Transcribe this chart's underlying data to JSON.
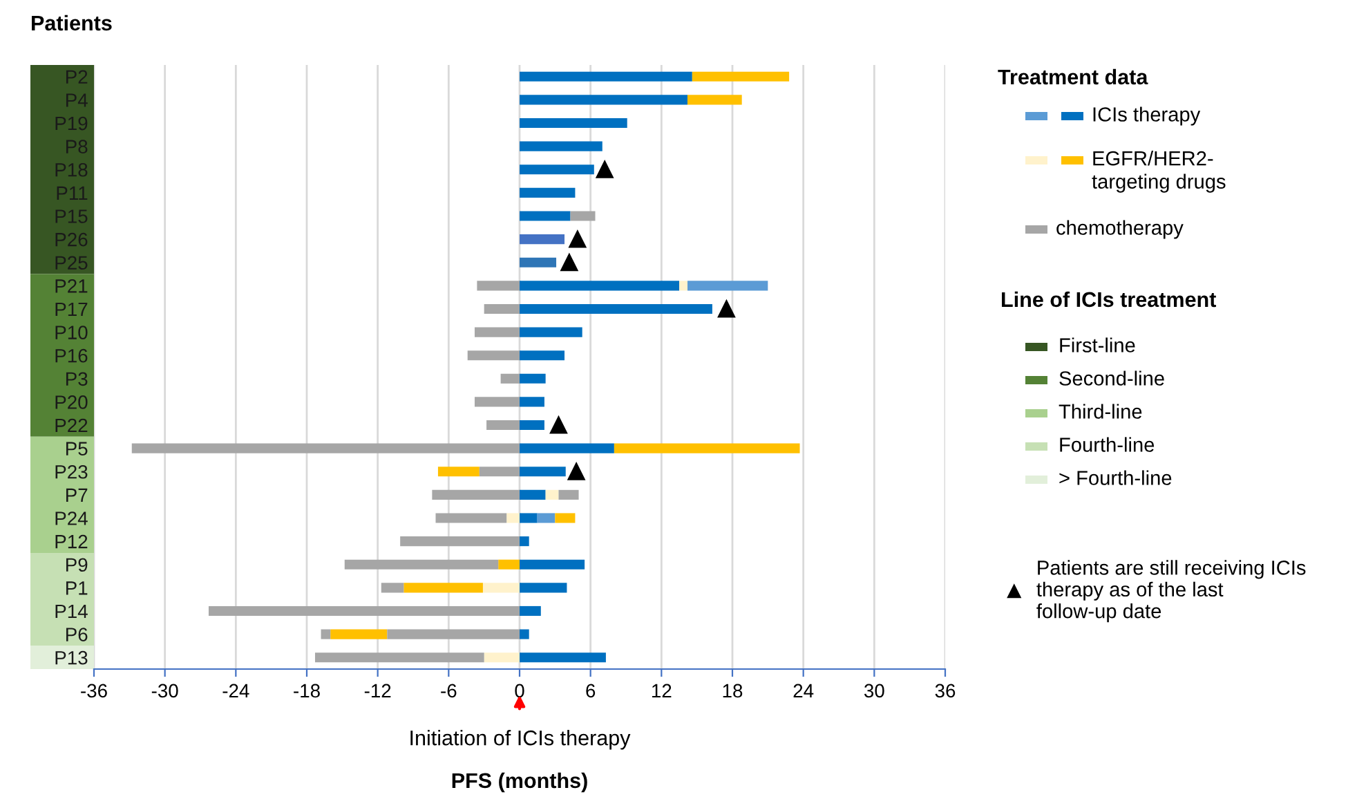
{
  "chart_data": {
    "type": "bar",
    "orientation": "horizontal",
    "ylabel": "Patients",
    "xlabel": "PFS (months)",
    "legend_title": "Treatment data",
    "legend": "right",
    "categories": [
      "P2",
      "P4",
      "P19",
      "P8",
      "P18",
      "P11",
      "P15",
      "P26",
      "P25",
      "P21",
      "P17",
      "P10",
      "P16",
      "P3",
      "P20",
      "P22",
      "P5",
      "P23",
      "P7",
      "P24",
      "P12",
      "P9",
      "P1",
      "P14",
      "P6",
      "P13"
    ],
    "series": [
      {
        "name": "ICIs therapy",
        "color": "#0070c0",
        "colors": [
          "#0070c0",
          "#0070c0",
          "#0070c0",
          "#0070c0",
          "#0070c0",
          "#0070c0",
          "#0070c0",
          "#4472c4",
          "#2e75b6",
          "#0070c0",
          "#0070c0",
          "#0070c0",
          "#0070c0",
          "#0070c0",
          "#0070c0",
          "#0070c0",
          "#0070c0",
          "#0070c0",
          "#0070c0",
          "#0070c0",
          "#0070c0",
          "#0070c0",
          "#0070c0",
          "#0070c0",
          "#0070c0",
          "#0070c0"
        ],
        "base": [
          0,
          0,
          0,
          0,
          0,
          0,
          0,
          0,
          0,
          0,
          0,
          0,
          0,
          0,
          0,
          0,
          0,
          0,
          0,
          0,
          0,
          0,
          0,
          0,
          0,
          0
        ],
        "values": [
          14.6,
          14.2,
          9.1,
          7.0,
          6.3,
          4.7,
          4.3,
          3.8,
          3.1,
          13.5,
          16.3,
          5.3,
          3.8,
          2.2,
          2.1,
          2.1,
          8.0,
          3.9,
          2.2,
          1.5,
          0.8,
          5.5,
          4.0,
          1.8,
          0.8,
          7.3
        ]
      },
      {
        "color": "#5b9bd5",
        "base": [
          null,
          null,
          null,
          null,
          null,
          null,
          null,
          null,
          null,
          14.2,
          null,
          null,
          null,
          null,
          null,
          null,
          null,
          null,
          null,
          1.5,
          null,
          null,
          null,
          null,
          null,
          null
        ],
        "values": [
          null,
          null,
          null,
          null,
          null,
          null,
          null,
          null,
          null,
          6.8,
          null,
          null,
          null,
          null,
          null,
          null,
          null,
          null,
          null,
          1.5,
          null,
          null,
          null,
          null,
          null,
          null
        ]
      },
      {
        "name": "EGFR/HER2-\ntargeting drugs",
        "color": "#ffc000",
        "base": [
          14.6,
          14.2,
          null,
          null,
          null,
          null,
          null,
          null,
          null,
          null,
          null,
          null,
          null,
          null,
          null,
          null,
          8.0,
          -6.9,
          null,
          3.0,
          null,
          -1.8,
          -9.8,
          null,
          -16.0,
          null
        ],
        "values": [
          8.2,
          4.6,
          null,
          null,
          null,
          null,
          null,
          null,
          null,
          null,
          null,
          null,
          null,
          null,
          null,
          null,
          15.7,
          3.5,
          null,
          1.7,
          null,
          1.8,
          6.7,
          null,
          4.8,
          null
        ]
      },
      {
        "color": "#fff2cc",
        "base": [
          null,
          null,
          null,
          null,
          null,
          null,
          null,
          null,
          null,
          13.5,
          null,
          null,
          null,
          null,
          null,
          null,
          null,
          null,
          2.2,
          -1.1,
          null,
          null,
          -3.1,
          null,
          null,
          -3.0
        ],
        "values": [
          null,
          null,
          null,
          null,
          null,
          null,
          null,
          null,
          null,
          0.7,
          null,
          null,
          null,
          null,
          null,
          null,
          null,
          null,
          1.1,
          1.1,
          null,
          null,
          3.1,
          null,
          null,
          3.0
        ]
      },
      {
        "name": "chemotherapy",
        "color": "#a6a6a6",
        "base": [
          null,
          null,
          null,
          null,
          null,
          null,
          null,
          null,
          null,
          -3.6,
          -3.0,
          -3.8,
          -4.4,
          -1.6,
          -3.8,
          -2.8,
          -32.8,
          -3.4,
          -7.4,
          -7.1,
          -10.1,
          -14.8,
          -11.7,
          -26.3,
          -11.2,
          -17.3
        ],
        "values": [
          null,
          null,
          null,
          null,
          null,
          null,
          null,
          null,
          null,
          3.6,
          3.0,
          3.8,
          4.4,
          1.6,
          3.8,
          2.8,
          32.8,
          3.4,
          7.4,
          6.0,
          10.1,
          13.0,
          1.9,
          26.3,
          11.2,
          14.3
        ]
      },
      {
        "color": "#a6a6a6",
        "base": [
          null,
          null,
          null,
          null,
          null,
          null,
          4.3,
          null,
          null,
          null,
          null,
          null,
          null,
          null,
          null,
          null,
          null,
          null,
          3.3,
          null,
          null,
          null,
          null,
          null,
          -16.8,
          null
        ],
        "values": [
          null,
          null,
          null,
          null,
          null,
          null,
          2.1,
          null,
          null,
          null,
          null,
          null,
          null,
          null,
          null,
          null,
          null,
          null,
          1.7,
          null,
          null,
          null,
          null,
          null,
          0.8,
          null
        ]
      },
      {
        "name": "Patients are still receiving ICIs\ntherapy as of the last\nfollow-up date",
        "type": "scatter",
        "marker": "triangle",
        "color": "#000000",
        "values": [
          null,
          null,
          null,
          null,
          7.2,
          null,
          null,
          4.9,
          4.2,
          null,
          17.5,
          null,
          null,
          null,
          null,
          3.3,
          null,
          4.8,
          null,
          null,
          null,
          null,
          null,
          null,
          null,
          null
        ]
      }
    ],
    "xlim": [
      -36,
      36
    ],
    "xticks": [
      -36,
      -30,
      -24,
      -18,
      -12,
      -6,
      0,
      6,
      12,
      18,
      24,
      30,
      36
    ],
    "grid": "x",
    "annotations": [
      {
        "text": "Initiation of ICIs therapy",
        "x": 0
      },
      "Line of ICIs treatment",
      "First-line",
      "Second-line",
      "Third-line",
      "Fourth-line",
      "> Fourth-line"
    ]
  }
}
